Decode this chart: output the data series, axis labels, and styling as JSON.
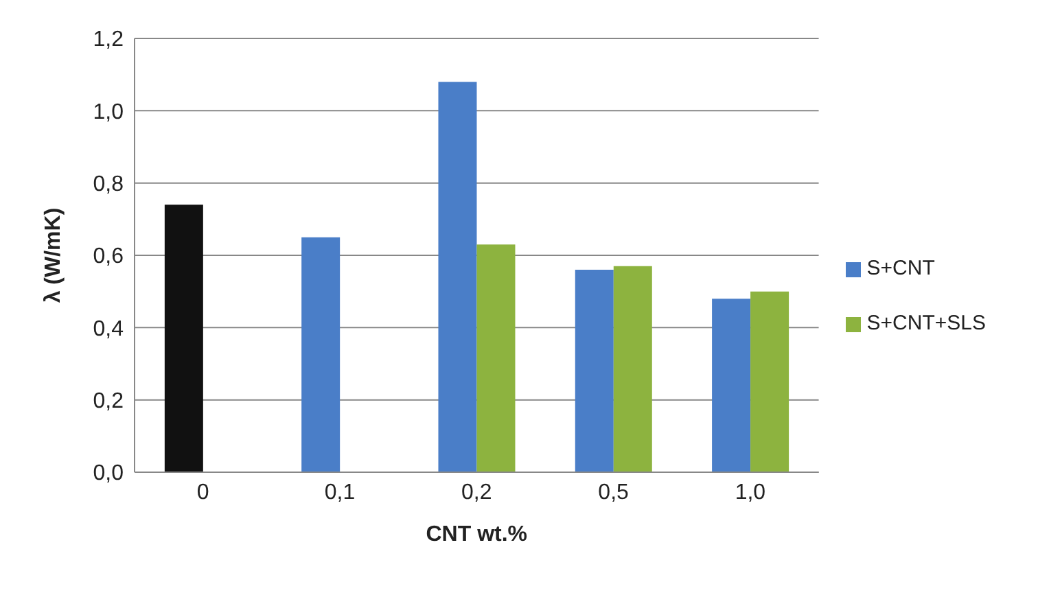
{
  "chart_data": {
    "type": "bar",
    "xlabel": "CNT wt.%",
    "ylabel": "λ (W/mK)",
    "categories": [
      "0",
      "0,1",
      "0,2",
      "0,5",
      "1,0"
    ],
    "series": [
      {
        "name": "S+CNT",
        "color": "#4a7ec8",
        "colors": [
          "#111111",
          "#4a7ec8",
          "#4a7ec8",
          "#4a7ec8",
          "#4a7ec8"
        ],
        "values": [
          0.74,
          0.65,
          1.08,
          0.56,
          0.48
        ]
      },
      {
        "name": "S+CNT+SLS",
        "color": "#8db33f",
        "values": [
          null,
          null,
          0.63,
          0.57,
          0.5
        ]
      }
    ],
    "ylim": [
      0,
      1.2
    ],
    "yticks": [
      {
        "value": 0,
        "label": "0,0"
      },
      {
        "value": 0.2,
        "label": "0,2"
      },
      {
        "value": 0.4,
        "label": "0,4"
      },
      {
        "value": 0.6,
        "label": "0,6"
      },
      {
        "value": 0.8,
        "label": "0,8"
      },
      {
        "value": 1.0,
        "label": "1,0"
      },
      {
        "value": 1.2,
        "label": "1,2"
      }
    ],
    "grid": "y",
    "legend": "right"
  }
}
